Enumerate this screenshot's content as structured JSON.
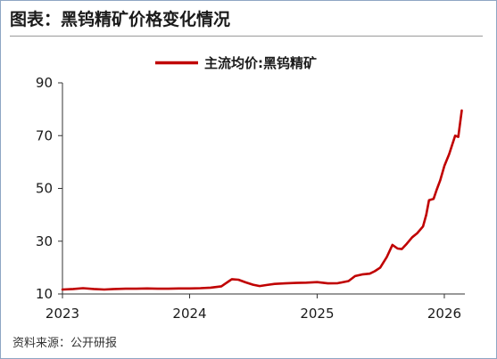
{
  "page": {
    "title": "图表：黑钨精矿价格变化情况",
    "source": "资料来源：公开研报"
  },
  "chart_data": {
    "type": "line",
    "title": "",
    "xlabel": "",
    "ylabel": "",
    "ylim": [
      10,
      90
    ],
    "yticks": [
      10,
      30,
      50,
      70,
      90
    ],
    "xlim": [
      "2023-01-01",
      "2026-03-01"
    ],
    "xticks": [
      "2023",
      "2024",
      "2025",
      "2026"
    ],
    "grid": false,
    "legend": "top-center",
    "colors": {
      "series": "#c00000",
      "axis": "#333333"
    },
    "series": [
      {
        "name": "主流均价:黑钨精矿",
        "points": [
          [
            "2023-01-01",
            11.7
          ],
          [
            "2023-02-01",
            11.9
          ],
          [
            "2023-03-01",
            12.2
          ],
          [
            "2023-04-01",
            11.9
          ],
          [
            "2023-05-01",
            11.7
          ],
          [
            "2023-06-01",
            11.9
          ],
          [
            "2023-07-01",
            12.0
          ],
          [
            "2023-08-01",
            12.0
          ],
          [
            "2023-09-01",
            12.1
          ],
          [
            "2023-10-01",
            12.0
          ],
          [
            "2023-11-01",
            12.0
          ],
          [
            "2023-12-01",
            12.1
          ],
          [
            "2024-01-01",
            12.1
          ],
          [
            "2024-02-01",
            12.2
          ],
          [
            "2024-03-01",
            12.4
          ],
          [
            "2024-04-01",
            12.9
          ],
          [
            "2024-05-01",
            15.6
          ],
          [
            "2024-05-20",
            15.4
          ],
          [
            "2024-06-10",
            14.4
          ],
          [
            "2024-07-01",
            13.5
          ],
          [
            "2024-07-20",
            13.0
          ],
          [
            "2024-08-10",
            13.4
          ],
          [
            "2024-09-01",
            13.8
          ],
          [
            "2024-10-01",
            14.0
          ],
          [
            "2024-11-01",
            14.2
          ],
          [
            "2024-12-01",
            14.3
          ],
          [
            "2025-01-01",
            14.5
          ],
          [
            "2025-02-01",
            14.0
          ],
          [
            "2025-03-01",
            14.1
          ],
          [
            "2025-04-01",
            14.9
          ],
          [
            "2025-04-20",
            16.8
          ],
          [
            "2025-05-10",
            17.4
          ],
          [
            "2025-06-01",
            17.7
          ],
          [
            "2025-06-15",
            18.6
          ],
          [
            "2025-07-01",
            20.0
          ],
          [
            "2025-07-20",
            24.0
          ],
          [
            "2025-08-05",
            28.6
          ],
          [
            "2025-08-20",
            27.2
          ],
          [
            "2025-09-01",
            27.0
          ],
          [
            "2025-09-15",
            29.0
          ],
          [
            "2025-10-01",
            31.5
          ],
          [
            "2025-10-15",
            33.0
          ],
          [
            "2025-11-01",
            35.6
          ],
          [
            "2025-11-10",
            40.0
          ],
          [
            "2025-11-18",
            45.5
          ],
          [
            "2025-12-01",
            46.0
          ],
          [
            "2025-12-10",
            49.5
          ],
          [
            "2025-12-20",
            53.0
          ],
          [
            "2026-01-01",
            58.5
          ],
          [
            "2026-01-15",
            63.0
          ],
          [
            "2026-02-01",
            70.0
          ],
          [
            "2026-02-10",
            69.5
          ],
          [
            "2026-02-20",
            79.5
          ]
        ]
      }
    ]
  }
}
